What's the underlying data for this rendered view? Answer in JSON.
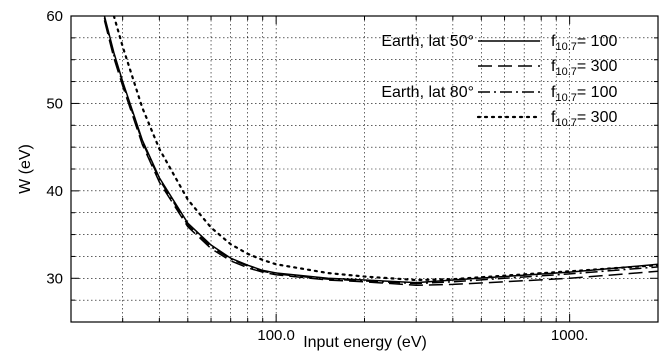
{
  "chart_data": {
    "type": "line",
    "xlabel": "Input energy (eV)",
    "ylabel": "W (eV)",
    "xscale": "log",
    "xlim": [
      20,
      2000
    ],
    "ylim": [
      25,
      60
    ],
    "grid": true,
    "legend_position": "top-right",
    "x_ticks": [
      {
        "value": 100,
        "label": "100.0"
      },
      {
        "value": 1000,
        "label": "1000."
      }
    ],
    "y_ticks": [
      {
        "value": 30,
        "label": "30"
      },
      {
        "value": 40,
        "label": "40"
      },
      {
        "value": 50,
        "label": "50"
      },
      {
        "value": 60,
        "label": "60"
      }
    ],
    "legend_groups": [
      {
        "label": "Earth, lat 50°",
        "series_index": 0
      },
      {
        "label": "Earth, lat 80°",
        "series_index": 2
      }
    ],
    "series": [
      {
        "f_main": "f",
        "f_sub": "10.7",
        "f_value": "= 100",
        "dash": "solid",
        "x": [
          26,
          28,
          30,
          35,
          40,
          50,
          60,
          70,
          80,
          90,
          100,
          150,
          200,
          300,
          400,
          600,
          1000,
          2000
        ],
        "y": [
          60.0,
          55.8,
          52.5,
          45.8,
          41.5,
          36.3,
          33.8,
          32.3,
          31.5,
          30.9,
          30.6,
          30.0,
          29.8,
          29.5,
          29.8,
          30.2,
          30.7,
          31.6
        ]
      },
      {
        "f_main": "f",
        "f_sub": "10.7",
        "f_value": "= 300",
        "dash": "dashed",
        "x": [
          26,
          28,
          30,
          35,
          40,
          50,
          60,
          70,
          80,
          90,
          100,
          150,
          200,
          300,
          400,
          600,
          1000,
          2000
        ],
        "y": [
          59.5,
          55.2,
          52.0,
          45.3,
          41.0,
          35.9,
          33.4,
          32.0,
          31.2,
          30.7,
          30.4,
          29.8,
          29.6,
          29.2,
          29.3,
          29.6,
          30.0,
          30.8
        ]
      },
      {
        "f_main": "f",
        "f_sub": "10.7",
        "f_value": "= 100",
        "dash": "dashdot",
        "x": [
          26,
          28,
          30,
          35,
          40,
          50,
          60,
          70,
          80,
          90,
          100,
          150,
          200,
          300,
          400,
          600,
          1000,
          2000
        ],
        "y": [
          59.8,
          55.5,
          52.3,
          45.6,
          41.3,
          36.1,
          33.6,
          32.2,
          31.4,
          30.8,
          30.5,
          29.9,
          29.7,
          29.4,
          29.6,
          30.0,
          30.5,
          31.3
        ]
      },
      {
        "f_main": "f",
        "f_sub": "10.7",
        "f_value": "= 300",
        "dash": "dotted",
        "x": [
          28,
          30,
          35,
          40,
          50,
          60,
          70,
          80,
          90,
          100,
          150,
          200,
          300,
          400,
          600,
          1000,
          2000
        ],
        "y": [
          60.0,
          56.5,
          49.5,
          44.8,
          39.0,
          35.8,
          33.9,
          32.8,
          32.1,
          31.6,
          30.6,
          30.2,
          29.8,
          29.9,
          30.3,
          30.8,
          31.5
        ]
      }
    ]
  }
}
